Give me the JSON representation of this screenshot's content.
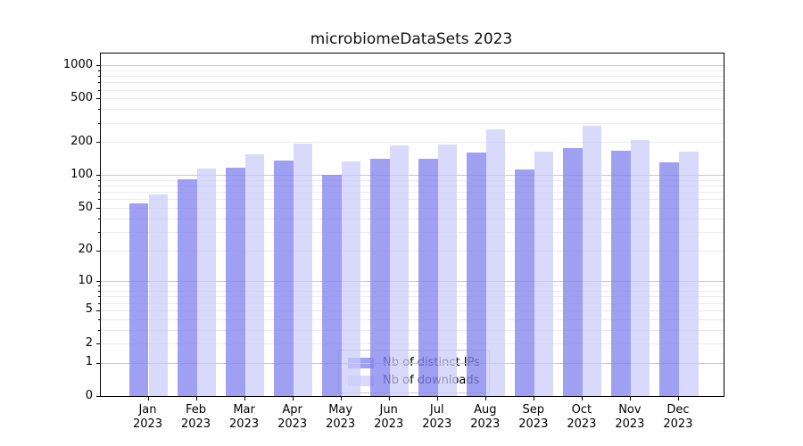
{
  "figure": {
    "background": "#ffffff",
    "frame_color": "#000000"
  },
  "chart_data": {
    "type": "bar",
    "title": "microbiomeDataSets 2023",
    "xlabel": "",
    "ylabel": "",
    "yscale": "log1p",
    "grid": "on",
    "grid_major_color": "#c9c9c9",
    "grid_minor_color": "#ebebeb",
    "legend_position": "lower center",
    "categories": [
      "Jan",
      "Feb",
      "Mar",
      "Apr",
      "May",
      "Jun",
      "Jul",
      "Aug",
      "Sep",
      "Oct",
      "Nov",
      "Dec"
    ],
    "year_label": "2023",
    "yticks": [
      0,
      1,
      2,
      5,
      10,
      20,
      50,
      100,
      200,
      500,
      1000
    ],
    "ylim": [
      0,
      1290
    ],
    "series": [
      {
        "name": "Nb of distinct IPs",
        "color": "#8585ef",
        "opacity": 0.78,
        "values": [
          55,
          91,
          117,
          137,
          101,
          140,
          141,
          161,
          113,
          178,
          168,
          130
        ]
      },
      {
        "name": "Nb of downloads",
        "color": "#cbcbf9",
        "opacity": 0.72,
        "values": [
          66,
          115,
          156,
          195,
          133,
          186,
          189,
          261,
          164,
          283,
          210,
          164
        ]
      }
    ]
  }
}
